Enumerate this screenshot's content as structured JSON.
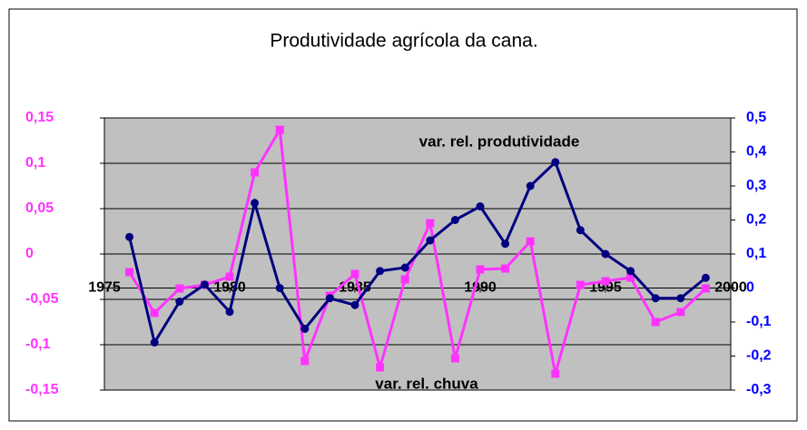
{
  "chart_data": {
    "type": "line",
    "title": "Produtividade agrícola da cana.",
    "annotations": [
      "var. rel. produtividade",
      "var. rel. chuva"
    ],
    "x": [
      1976,
      1977,
      1978,
      1979,
      1980,
      1981,
      1982,
      1983,
      1984,
      1985,
      1986,
      1987,
      1988,
      1989,
      1990,
      1991,
      1992,
      1993,
      1994,
      1995,
      1996,
      1997,
      1998,
      1999
    ],
    "xlim": [
      1975,
      2000
    ],
    "xticks": [
      1975,
      1980,
      1985,
      1990,
      1995,
      2000
    ],
    "ylim": [
      -0.15,
      0.15
    ],
    "yticks": [
      {
        "value": -0.15,
        "label": "-0,15"
      },
      {
        "value": -0.1,
        "label": "-0,1"
      },
      {
        "value": -0.05,
        "label": "-0,05"
      },
      0,
      {
        "value": 0.05,
        "label": "0,05"
      },
      {
        "value": 0.1,
        "label": "0,1"
      },
      {
        "value": 0.15,
        "label": "0,15"
      }
    ],
    "y2lim": [
      -0.3,
      0.5
    ],
    "y2ticks": [
      {
        "value": -0.3,
        "label": "-0,3"
      },
      {
        "value": -0.2,
        "label": "-0,2"
      },
      {
        "value": -0.1,
        "label": "-0,1"
      },
      0,
      {
        "value": 0.1,
        "label": "0,1"
      },
      {
        "value": 0.2,
        "label": "0,2"
      },
      {
        "value": 0.3,
        "label": "0,3"
      },
      {
        "value": 0.4,
        "label": "0,4"
      },
      {
        "value": 0.5,
        "label": "0,5"
      }
    ],
    "grid": true,
    "series": [
      {
        "name": "var. rel. chuva",
        "color": "#ff33ff",
        "marker": "square",
        "axis": "y",
        "values": [
          -0.02,
          -0.065,
          -0.038,
          -0.034,
          -0.025,
          0.09,
          0.137,
          -0.118,
          -0.046,
          -0.022,
          -0.125,
          -0.028,
          0.034,
          -0.115,
          -0.017,
          -0.016,
          0.014,
          -0.132,
          -0.034,
          -0.03,
          -0.026,
          -0.075,
          -0.064,
          -0.038
        ]
      },
      {
        "name": "var. rel. produtividade",
        "color": "#000080",
        "marker": "circle",
        "axis": "y2",
        "values": [
          0.15,
          -0.16,
          -0.04,
          0.01,
          -0.07,
          0.25,
          0.0,
          -0.12,
          -0.03,
          -0.05,
          0.05,
          0.06,
          0.14,
          0.2,
          0.24,
          0.13,
          0.3,
          0.37,
          0.17,
          0.1,
          0.05,
          -0.03,
          -0.03,
          0.03
        ]
      }
    ]
  }
}
